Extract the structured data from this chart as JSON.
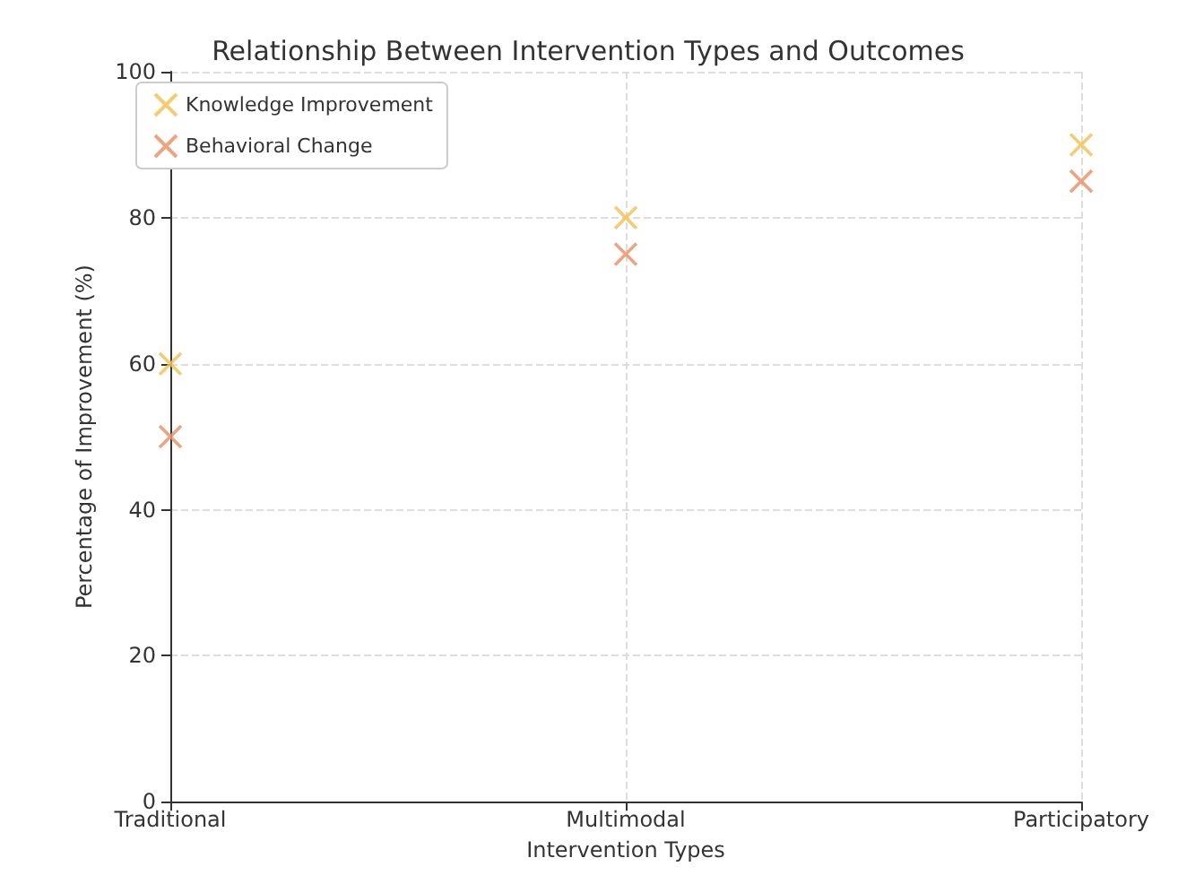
{
  "chart_data": {
    "type": "scatter",
    "title": "Relationship Between Intervention Types and Outcomes",
    "xlabel": "Intervention Types",
    "ylabel": "Percentage of Improvement (%)",
    "categories": [
      "Traditional",
      "Multimodal",
      "Participatory"
    ],
    "series": [
      {
        "name": "Knowledge Improvement",
        "color": "#f2c45a",
        "values": [
          60,
          80,
          90
        ]
      },
      {
        "name": "Behavioral Change",
        "color": "#e8956a",
        "values": [
          50,
          75,
          85
        ]
      }
    ],
    "ylim": [
      0,
      100
    ],
    "yticks": [
      0,
      20,
      40,
      60,
      80,
      100
    ],
    "grid": true,
    "legend": "top left",
    "marker": "cross"
  }
}
